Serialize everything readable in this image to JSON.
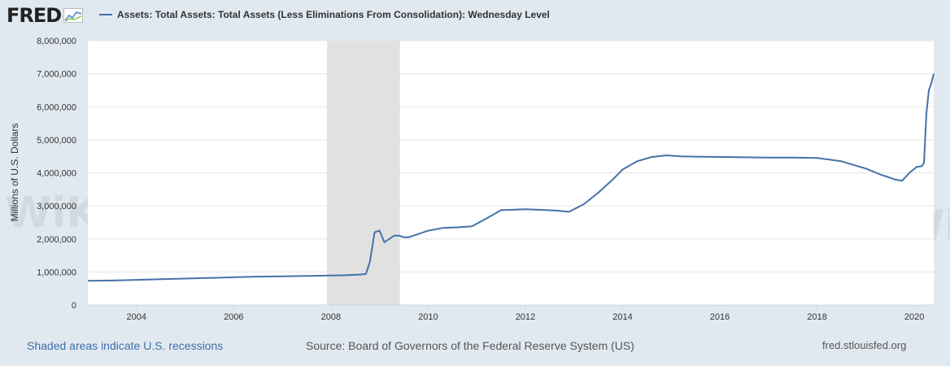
{
  "logo": {
    "text": "FRED",
    "icon": "chart-line-icon"
  },
  "chart_data": {
    "type": "line",
    "title": "Assets: Total Assets: Total Assets (Less Eliminations From Consolidation): Wednesday Level",
    "ylabel": "Millions of U.S. Dollars",
    "xlabel": "",
    "xlim": [
      2003.0,
      2020.4
    ],
    "ylim": [
      0,
      8000000
    ],
    "x_ticks": [
      2004,
      2006,
      2008,
      2010,
      2012,
      2014,
      2016,
      2018,
      2020
    ],
    "x_tick_labels": [
      "2004",
      "2006",
      "2008",
      "2010",
      "2012",
      "2014",
      "2016",
      "2018",
      "2020"
    ],
    "y_ticks": [
      0,
      1000000,
      2000000,
      3000000,
      4000000,
      5000000,
      6000000,
      7000000,
      8000000
    ],
    "y_tick_labels": [
      "0",
      "1,000,000",
      "2,000,000",
      "3,000,000",
      "4,000,000",
      "5,000,000",
      "6,000,000",
      "7,000,000",
      "8,000,000"
    ],
    "grid": "horizontal",
    "recessions": [
      [
        2007.92,
        2009.42
      ]
    ],
    "color": "#4572a7",
    "series": [
      {
        "x": [
          2003.0,
          2003.5,
          2004.0,
          2004.5,
          2005.0,
          2005.5,
          2006.0,
          2006.5,
          2007.0,
          2007.5,
          2008.0,
          2008.3,
          2008.6,
          2008.72,
          2008.8,
          2008.9,
          2009.0,
          2009.1,
          2009.2,
          2009.3,
          2009.4,
          2009.5,
          2009.6,
          2009.8,
          2010.0,
          2010.3,
          2010.6,
          2010.9,
          2011.2,
          2011.5,
          2011.7,
          2012.0,
          2012.3,
          2012.6,
          2012.9,
          2013.2,
          2013.5,
          2013.8,
          2014.0,
          2014.3,
          2014.6,
          2014.9,
          2015.2,
          2015.5,
          2016.0,
          2016.5,
          2017.0,
          2017.5,
          2018.0,
          2018.5,
          2019.0,
          2019.3,
          2019.6,
          2019.75,
          2019.9,
          2020.05,
          2020.15,
          2020.2,
          2020.25,
          2020.3,
          2020.35,
          2020.4
        ],
        "y": [
          730000,
          740000,
          760000,
          780000,
          800000,
          820000,
          840000,
          860000,
          870000,
          880000,
          890000,
          900000,
          920000,
          940000,
          1300000,
          2200000,
          2250000,
          1900000,
          2000000,
          2100000,
          2100000,
          2050000,
          2050000,
          2150000,
          2250000,
          2330000,
          2350000,
          2380000,
          2620000,
          2870000,
          2880000,
          2900000,
          2880000,
          2860000,
          2820000,
          3050000,
          3400000,
          3800000,
          4100000,
          4350000,
          4480000,
          4530000,
          4500000,
          4490000,
          4480000,
          4470000,
          4460000,
          4460000,
          4450000,
          4350000,
          4130000,
          3950000,
          3800000,
          3760000,
          4000000,
          4180000,
          4200000,
          4300000,
          5800000,
          6500000,
          6700000,
          7000000
        ]
      }
    ]
  },
  "footer": {
    "recession_note": "Shaded areas indicate U.S. recessions",
    "source": "Source: Board of Governors of the Federal Reserve System (US)",
    "site": "fred.stlouisfed.org"
  }
}
